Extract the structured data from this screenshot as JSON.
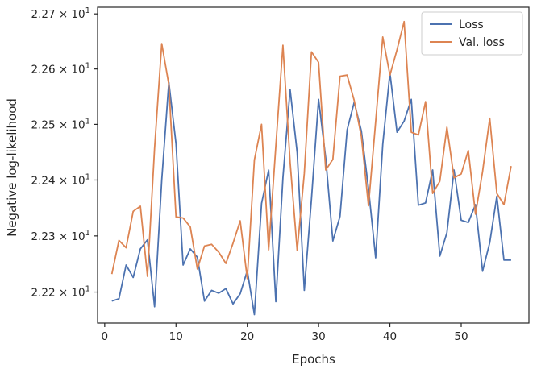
{
  "chart_data": {
    "type": "line",
    "title": "",
    "xlabel": "Epochs",
    "ylabel": "Negative log-likelihood",
    "yscale": "log",
    "xlim": [
      -1,
      59.5
    ],
    "ylim": [
      22.145,
      22.712
    ],
    "xticks": [
      0,
      10,
      20,
      30,
      40,
      50
    ],
    "xtick_labels": [
      "0",
      "10",
      "20",
      "30",
      "40",
      "50"
    ],
    "yticks": [
      22.2,
      22.3,
      22.4,
      22.5,
      22.6,
      22.7
    ],
    "ytick_labels": [
      {
        "base": "2.22",
        "exp": "1"
      },
      {
        "base": "2.23",
        "exp": "1"
      },
      {
        "base": "2.24",
        "exp": "1"
      },
      {
        "base": "2.25",
        "exp": "1"
      },
      {
        "base": "2.26",
        "exp": "1"
      },
      {
        "base": "2.27",
        "exp": "1"
      }
    ],
    "ytick_prefix": "× 10",
    "grid": false,
    "legend": "top-right",
    "x": [
      1,
      2,
      3,
      4,
      5,
      6,
      7,
      8,
      9,
      10,
      11,
      12,
      13,
      14,
      15,
      16,
      17,
      18,
      19,
      20,
      21,
      22,
      23,
      24,
      25,
      26,
      27,
      28,
      29,
      30,
      31,
      32,
      33,
      34,
      35,
      36,
      37,
      38,
      39,
      40,
      41,
      42,
      43,
      44,
      45,
      46,
      47,
      48,
      49,
      50,
      51,
      52,
      53,
      54,
      55,
      56,
      57
    ],
    "series": [
      {
        "name": "Loss",
        "color": "#4c72b0",
        "values": [
          22.184,
          22.188,
          22.248,
          22.226,
          22.277,
          22.293,
          22.174,
          22.4,
          22.576,
          22.465,
          22.248,
          22.277,
          22.262,
          22.184,
          22.203,
          22.198,
          22.206,
          22.179,
          22.197,
          22.238,
          22.16,
          22.358,
          22.418,
          22.183,
          22.404,
          22.563,
          22.449,
          22.203,
          22.366,
          22.545,
          22.439,
          22.291,
          22.335,
          22.49,
          22.54,
          22.488,
          22.385,
          22.261,
          22.464,
          22.593,
          22.486,
          22.506,
          22.545,
          22.355,
          22.359,
          22.418,
          22.264,
          22.306,
          22.418,
          22.328,
          22.324,
          22.356,
          22.237,
          22.288,
          22.371,
          22.257,
          22.257
        ]
      },
      {
        "name": "Val. loss",
        "color": "#dd8452",
        "values": [
          22.232,
          22.292,
          22.279,
          22.344,
          22.353,
          22.228,
          22.457,
          22.646,
          22.572,
          22.334,
          22.332,
          22.316,
          22.241,
          22.282,
          22.285,
          22.271,
          22.251,
          22.287,
          22.327,
          22.224,
          22.436,
          22.5,
          22.275,
          22.461,
          22.643,
          22.432,
          22.274,
          22.412,
          22.631,
          22.612,
          22.418,
          22.437,
          22.587,
          22.589,
          22.543,
          22.478,
          22.354,
          22.505,
          22.658,
          22.589,
          22.635,
          22.686,
          22.486,
          22.481,
          22.541,
          22.376,
          22.398,
          22.495,
          22.404,
          22.411,
          22.453,
          22.339,
          22.415,
          22.511,
          22.376,
          22.356,
          22.425
        ]
      }
    ]
  }
}
